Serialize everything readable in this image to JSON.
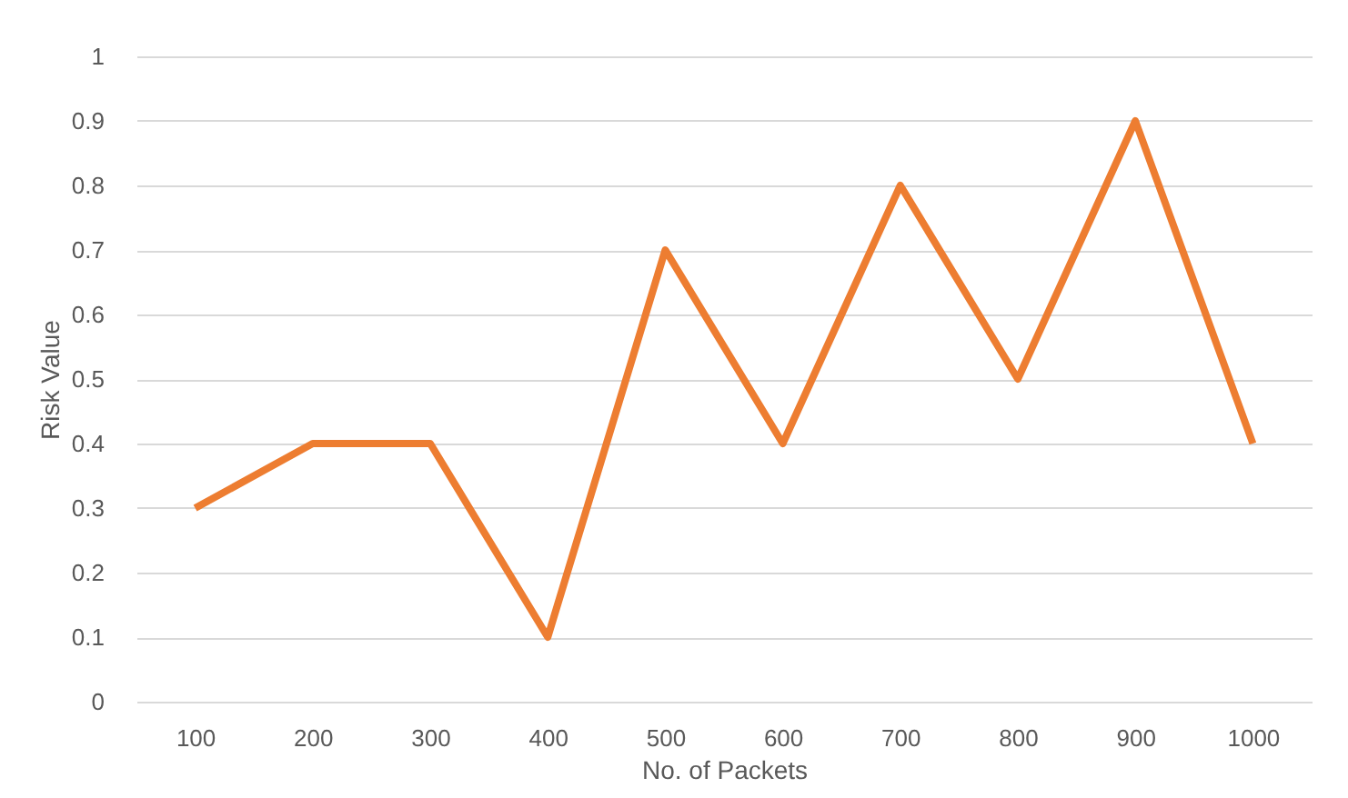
{
  "chart_data": {
    "type": "line",
    "xlabel": "No. of Packets",
    "ylabel": "Risk Value",
    "categories": [
      "100",
      "200",
      "300",
      "400",
      "500",
      "600",
      "700",
      "800",
      "900",
      "1000"
    ],
    "series": [
      {
        "color": "#ed7d31",
        "values": [
          0.3,
          0.4,
          0.4,
          0.1,
          0.7,
          0.4,
          0.8,
          0.5,
          0.9,
          0.4
        ]
      }
    ],
    "ylim": [
      0,
      1
    ],
    "yticks": [
      0,
      0.1,
      0.2,
      0.3,
      0.4,
      0.5,
      0.6,
      0.7,
      0.8,
      0.9,
      1
    ],
    "grid": "y",
    "marker": "none",
    "line_style": "solid"
  }
}
